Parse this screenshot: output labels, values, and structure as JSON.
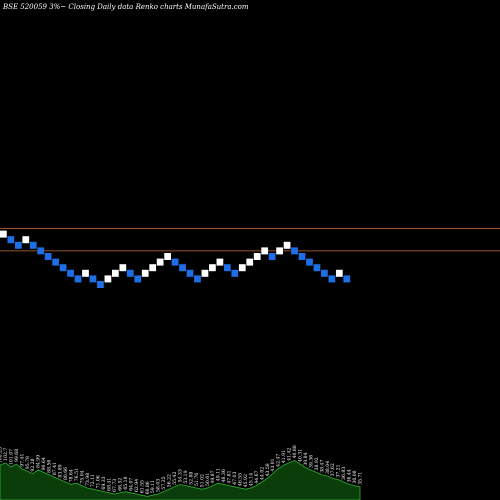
{
  "header": {
    "title": "BSE 520059 3%~  Closing Daily data  Renko  charts MunafaSutra.com"
  },
  "colors": {
    "background": "#000000",
    "up_brick": "#ffffff",
    "down_brick": "#1e6fe6",
    "reference_line": "#c0703a",
    "volume_fill": "#0b3d0b",
    "volume_stroke": "#2fae2f",
    "label": "#ffffff"
  },
  "chart_data": [
    {
      "type": "renko",
      "box_size_percent": 3,
      "price_min": 0,
      "price_max": 18,
      "reference_levels": [
        13,
        9
      ],
      "bricks": [
        {
          "dir": "up",
          "level": 12
        },
        {
          "dir": "down",
          "level": 11
        },
        {
          "dir": "down",
          "level": 10
        },
        {
          "dir": "up",
          "level": 11
        },
        {
          "dir": "down",
          "level": 10
        },
        {
          "dir": "down",
          "level": 9
        },
        {
          "dir": "down",
          "level": 8
        },
        {
          "dir": "down",
          "level": 7
        },
        {
          "dir": "down",
          "level": 6
        },
        {
          "dir": "down",
          "level": 5
        },
        {
          "dir": "down",
          "level": 4
        },
        {
          "dir": "up",
          "level": 5
        },
        {
          "dir": "down",
          "level": 4
        },
        {
          "dir": "down",
          "level": 3
        },
        {
          "dir": "up",
          "level": 4
        },
        {
          "dir": "up",
          "level": 5
        },
        {
          "dir": "up",
          "level": 6
        },
        {
          "dir": "down",
          "level": 5
        },
        {
          "dir": "down",
          "level": 4
        },
        {
          "dir": "up",
          "level": 5
        },
        {
          "dir": "up",
          "level": 6
        },
        {
          "dir": "up",
          "level": 7
        },
        {
          "dir": "up",
          "level": 8
        },
        {
          "dir": "down",
          "level": 7
        },
        {
          "dir": "down",
          "level": 6
        },
        {
          "dir": "down",
          "level": 5
        },
        {
          "dir": "down",
          "level": 4
        },
        {
          "dir": "up",
          "level": 5
        },
        {
          "dir": "up",
          "level": 6
        },
        {
          "dir": "up",
          "level": 7
        },
        {
          "dir": "down",
          "level": 6
        },
        {
          "dir": "down",
          "level": 5
        },
        {
          "dir": "up",
          "level": 6
        },
        {
          "dir": "up",
          "level": 7
        },
        {
          "dir": "up",
          "level": 8
        },
        {
          "dir": "up",
          "level": 9
        },
        {
          "dir": "down",
          "level": 8
        },
        {
          "dir": "up",
          "level": 9
        },
        {
          "dir": "up",
          "level": 10
        },
        {
          "dir": "down",
          "level": 9
        },
        {
          "dir": "down",
          "level": 8
        },
        {
          "dir": "down",
          "level": 7
        },
        {
          "dir": "down",
          "level": 6
        },
        {
          "dir": "down",
          "level": 5
        },
        {
          "dir": "down",
          "level": 4
        },
        {
          "dir": "up",
          "level": 5
        },
        {
          "dir": "down",
          "level": 4
        }
      ]
    },
    {
      "type": "area",
      "series_role": "volume",
      "ylim": [
        0,
        100
      ],
      "values": [
        58,
        62,
        55,
        60,
        52,
        48,
        44,
        50,
        46,
        42,
        38,
        34,
        30,
        26,
        28,
        24,
        20,
        18,
        16,
        14,
        12,
        10,
        12,
        14,
        12,
        10,
        8,
        6,
        8,
        10,
        14,
        18,
        22,
        26,
        24,
        22,
        20,
        18,
        20,
        24,
        28,
        26,
        24,
        22,
        20,
        18,
        20,
        24,
        30,
        36,
        44,
        52,
        58,
        62,
        66,
        60,
        54,
        50,
        46,
        42,
        40,
        36,
        34,
        30,
        26,
        24,
        22
      ]
    }
  ],
  "volume_labels": [
    "106.25",
    "102.7",
    "101.07",
    "99.68",
    "97.41",
    "95.78",
    "92.28",
    "84.99",
    "90.64",
    "88.56",
    "87.41",
    "83.89",
    "80.66",
    "78.64",
    "76.51",
    "75.04",
    "73.98",
    "72.11",
    "71.06",
    "69.33",
    "68.41",
    "67.73",
    "66.52",
    "65.18",
    "64.07",
    "62.94",
    "61.55",
    "60.86",
    "59.11",
    "58.03",
    "57.25",
    "56.22",
    "55.42",
    "54.33",
    "53.19",
    "52.88",
    "51.76",
    "51.02",
    "50.61",
    "49.87",
    "49.11",
    "48.36",
    "47.81",
    "47.03",
    "46.55",
    "45.92",
    "45.14",
    "44.67",
    "44.02",
    "43.58",
    "43.01",
    "42.47",
    "41.91",
    "41.42",
    "40.88",
    "40.31",
    "39.84",
    "39.36",
    "38.92",
    "38.47",
    "38.04",
    "37.62",
    "37.21",
    "36.83",
    "36.44",
    "36.08",
    "35.71"
  ]
}
